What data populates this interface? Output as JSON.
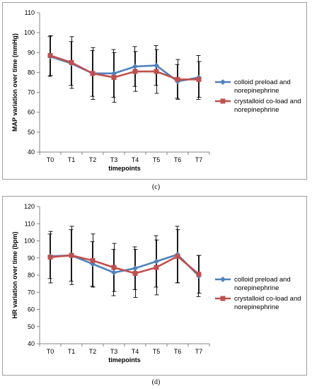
{
  "chart_data": [
    {
      "type": "line",
      "id": "c",
      "caption": "(c)",
      "xlabel": "timepoints",
      "ylabel": "MAP variation over time (mmHg)",
      "categories": [
        "T0",
        "T1",
        "T2",
        "T3",
        "T4",
        "T5",
        "T6",
        "T7"
      ],
      "ylim": [
        40,
        110
      ],
      "ytick_step": 10,
      "yticks": [
        "40",
        "50",
        "60",
        "70",
        "80",
        "90",
        "100",
        "110"
      ],
      "grid": false,
      "legend_position": "right",
      "series": [
        {
          "name": "colloid preload and norepinephrine",
          "color": "#4f81bd",
          "marker": "diamond",
          "values": [
            88,
            84.5,
            79.5,
            79.5,
            83,
            83.5,
            75.5,
            77.5
          ],
          "error": [
            10,
            11,
            11.5,
            12,
            10,
            10,
            8.5,
            11
          ]
        },
        {
          "name": "crystalloid co-load and norepinephrine",
          "color": "#c0504d",
          "marker": "square",
          "values": [
            88.5,
            85,
            79.5,
            77.5,
            80.5,
            80.5,
            76.5,
            76.5
          ],
          "error": [
            10,
            13,
            13,
            12.5,
            10,
            11,
            10,
            9
          ]
        }
      ]
    },
    {
      "type": "line",
      "id": "d",
      "caption": "(d)",
      "xlabel": "timepoints",
      "ylabel": "HR variation over time (bpm)",
      "categories": [
        "T0",
        "T1",
        "T2",
        "T3",
        "T4",
        "T5",
        "T6",
        "T7"
      ],
      "ylim": [
        40,
        120
      ],
      "ytick_step": 10,
      "yticks": [
        "40",
        "50",
        "60",
        "70",
        "80",
        "90",
        "100",
        "110",
        "120"
      ],
      "grid": false,
      "legend_position": "right",
      "series": [
        {
          "name": "colloid preload and norepinephrine",
          "color": "#4f81bd",
          "marker": "diamond",
          "values": [
            91,
            91.5,
            86.5,
            81.5,
            84,
            88,
            92,
            79.5
          ],
          "error": [
            13,
            15,
            13,
            13.5,
            12.5,
            15,
            16.5,
            12
          ]
        },
        {
          "name": "crystalloid co-load and norepinephrine",
          "color": "#c0504d",
          "marker": "square",
          "values": [
            90.5,
            91.5,
            88.5,
            84.5,
            81,
            84.5,
            91,
            80.5
          ],
          "error": [
            15,
            17,
            15.5,
            14,
            14,
            16,
            15.5,
            11
          ]
        }
      ]
    }
  ]
}
